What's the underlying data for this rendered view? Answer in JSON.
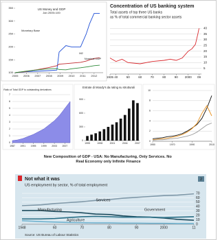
{
  "heading": "New Composition of GDP - USA: No Manufacturing, Only Services. No Real Economy only Infinite Finance",
  "chart_data": [
    {
      "type": "line",
      "title": "US Money and GDP",
      "subtitle": "Jan 2005=100",
      "x": [
        2005,
        2006,
        2007,
        2008,
        2008.7,
        2008.9,
        2009.5,
        2010,
        2010.8,
        2011.3,
        2011.6,
        2012,
        2012.5
      ],
      "xlim": [
        2005,
        2012.8
      ],
      "xticks": [
        2005,
        2006,
        2007,
        2008,
        2009,
        2010,
        2011,
        2012
      ],
      "ylim": [
        100,
        350
      ],
      "yticks": [
        100,
        150,
        200,
        250,
        300,
        350
      ],
      "grid": false,
      "series": [
        {
          "name": "Monetary Base",
          "color": "#1f4fd6",
          "values": [
            100,
            104,
            106,
            108,
            110,
            180,
            205,
            200,
            200,
            250,
            290,
            330,
            330
          ]
        },
        {
          "name": "M2",
          "color": "#c0282d",
          "values": [
            100,
            105,
            112,
            120,
            127,
            133,
            135,
            137,
            140,
            145,
            150,
            155,
            158
          ]
        },
        {
          "name": "Nominal GDP",
          "color": "#2e8b3a",
          "values": [
            100,
            106,
            111,
            115,
            116,
            112,
            111,
            115,
            119,
            122,
            124,
            127,
            129
          ]
        }
      ]
    },
    {
      "type": "line",
      "title": "Concentration of US banking system",
      "subtitle": "Total assets of top three US banks",
      "subtitle2": "as % of total commercial banking sector assets",
      "x": [
        1935,
        1940,
        1945,
        1950,
        1960,
        1970,
        1980,
        1985,
        1990,
        1995,
        2000,
        2003,
        2006,
        2008,
        2009
      ],
      "xlim": [
        1935,
        2011
      ],
      "xticks": [
        1935,
        {
          "value": 1940,
          "label": "40"
        },
        {
          "value": 1950,
          "label": "50"
        },
        {
          "value": 1960,
          "label": "60"
        },
        {
          "value": 1970,
          "label": "70"
        },
        {
          "value": 1980,
          "label": "80"
        },
        {
          "value": 1990,
          "label": "90"
        },
        2000,
        {
          "value": 2009,
          "label": "09"
        }
      ],
      "ylim": [
        0,
        42
      ],
      "yticks": [
        5,
        10,
        15,
        20,
        25,
        30,
        35,
        40
      ],
      "grid": true,
      "series": [
        {
          "color": "#d9262b",
          "values": [
            14,
            11,
            13,
            10,
            9,
            11,
            12,
            13,
            12,
            14,
            20,
            22,
            26,
            35,
            40
          ]
        }
      ]
    },
    {
      "type": "area",
      "title": "Ratio of Total GDP to outstanding derivatives",
      "x": [
        1987,
        1989,
        1991,
        1993,
        1995,
        1997,
        1999,
        2001,
        2003,
        2005,
        2007,
        2009
      ],
      "xlim": [
        1987,
        2009
      ],
      "xticks": [
        1987,
        1991,
        1995,
        1999,
        2003,
        2007
      ],
      "ylim": [
        0,
        7
      ],
      "yticks": [
        0,
        1,
        2,
        3,
        4,
        5,
        6,
        7
      ],
      "grid": true,
      "series": [
        {
          "color": "#8c8ce8",
          "values": [
            0.3,
            0.4,
            0.6,
            0.9,
            1.2,
            1.6,
            2.0,
            2.6,
            3.2,
            4.0,
            5.0,
            6.0
          ]
        }
      ]
    },
    {
      "type": "bar",
      "title": "Entrate di Moody's da rating su strutturali",
      "categories": [
        "1995",
        "1996",
        "1997",
        "1998",
        "1999",
        "2000",
        "2001",
        "2002",
        "2003",
        "2004",
        "2005",
        "2006",
        "2007"
      ],
      "values": [
        100,
        130,
        160,
        200,
        250,
        300,
        350,
        400,
        480,
        560,
        700,
        880,
        820
      ],
      "color": "#111111",
      "ylim": [
        0,
        900
      ],
      "yticks": [
        0,
        300,
        600,
        900
      ],
      "grid": false
    },
    {
      "type": "line",
      "x": [
        1950,
        1955,
        1960,
        1965,
        1970,
        1975,
        1980,
        1985,
        1990,
        1995,
        2000,
        2005,
        2010
      ],
      "xlim": [
        1950,
        2010
      ],
      "xticks": [
        1950,
        1970,
        1990,
        2010
      ],
      "ylim": [
        0,
        10
      ],
      "yticks": [
        0,
        2,
        4,
        6,
        8,
        10
      ],
      "grid": true,
      "series": [
        {
          "color": "#111111",
          "values": [
            0.5,
            0.6,
            0.7,
            0.9,
            1.0,
            1.2,
            1.5,
            2.0,
            2.6,
            3.3,
            4.5,
            6.5,
            9.0
          ]
        },
        {
          "color": "#e8901c",
          "values": [
            0.3,
            0.4,
            0.5,
            0.6,
            0.8,
            1.0,
            1.3,
            1.8,
            2.5,
            3.5,
            5.5,
            7.0,
            5.0
          ]
        },
        {
          "color": "#999999",
          "values": [
            0.2,
            0.3,
            0.3,
            0.4,
            0.5,
            0.6,
            0.8,
            1.0,
            1.3,
            1.8,
            2.5,
            3.2,
            3.6
          ]
        }
      ]
    },
    {
      "type": "line",
      "title": "Not what it was",
      "subtitle": "US employment by sector, % of total employment",
      "source": "Source: US Bureau of Labour Statistics",
      "badge": "2",
      "x": [
        1948,
        1955,
        1960,
        1965,
        1970,
        1975,
        1980,
        1985,
        1990,
        1995,
        2000,
        2005,
        2011
      ],
      "xlim": [
        1948,
        2011
      ],
      "xticks": [
        1948,
        {
          "value": 1960,
          "label": "60"
        },
        {
          "value": 1970,
          "label": "70"
        },
        {
          "value": 1980,
          "label": "80"
        },
        {
          "value": 1990,
          "label": "90"
        },
        2000,
        {
          "value": 2011,
          "label": "11"
        }
      ],
      "ylim": [
        0,
        70
      ],
      "yticks": [
        0,
        10,
        20,
        30,
        40,
        50,
        60,
        70
      ],
      "grid": true,
      "series": [
        {
          "name": "Services",
          "color": "#7f98a8",
          "values": [
            42,
            44,
            47,
            49,
            51,
            54,
            56,
            59,
            61,
            63,
            65,
            66,
            69
          ]
        },
        {
          "name": "Manufacturing",
          "color": "#1c4a5c",
          "values": [
            31,
            31,
            29,
            28,
            26,
            23,
            22,
            19,
            17,
            16,
            14,
            11,
            9
          ]
        },
        {
          "name": "Government",
          "color": "#2a6f86",
          "values": [
            12,
            12,
            13,
            15,
            17,
            18,
            17,
            16,
            16,
            16,
            15,
            16,
            17
          ]
        },
        {
          "name": "Agriculture",
          "color": "#6fb2cf",
          "values": [
            8,
            6,
            5,
            4,
            3.5,
            3,
            3,
            2.5,
            2.5,
            2,
            2,
            1.5,
            1.5
          ]
        }
      ]
    }
  ]
}
